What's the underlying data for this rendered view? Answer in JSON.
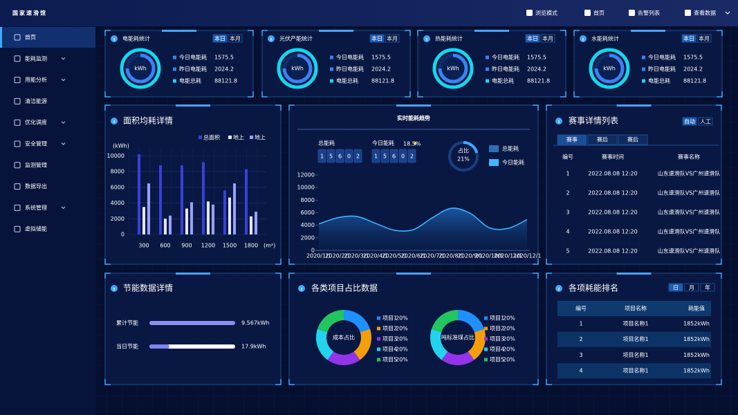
{
  "header": {
    "title": "国家速滑馆",
    "nav": [
      "浏览模式",
      "首页",
      "告警列表",
      "查看数据"
    ]
  },
  "sidebar": {
    "items": [
      {
        "label": "首页",
        "expandable": false,
        "active": true
      },
      {
        "label": "能耗监测",
        "expandable": true,
        "active": false
      },
      {
        "label": "用能分析",
        "expandable": true,
        "active": false
      },
      {
        "label": "清洁能源",
        "expandable": false,
        "active": false
      },
      {
        "label": "优化调度",
        "expandable": true,
        "active": false
      },
      {
        "label": "安全管理",
        "expandable": true,
        "active": false
      },
      {
        "label": "监测管理",
        "expandable": false,
        "active": false
      },
      {
        "label": "数据导出",
        "expandable": false,
        "active": false
      },
      {
        "label": "系统管理",
        "expandable": true,
        "active": false
      },
      {
        "label": "虚拟储能",
        "expandable": false,
        "active": false
      }
    ]
  },
  "stat_cards": [
    {
      "title": "电能耗统计",
      "tabs": [
        "本日",
        "本月"
      ],
      "gauge_unit": "kWh",
      "rows": [
        {
          "label": "今日电能耗",
          "value": 1575.5
        },
        {
          "label": "昨日电能耗",
          "value": 2024.2
        },
        {
          "label": "电能总耗",
          "value": 88121.8
        }
      ]
    },
    {
      "title": "光伏产能统计",
      "tabs": [
        "本日",
        "本月"
      ],
      "gauge_unit": "kWh",
      "rows": [
        {
          "label": "今日电能耗",
          "value": 1575.5
        },
        {
          "label": "昨日电能耗",
          "value": 2024.2
        },
        {
          "label": "电能总耗",
          "value": 88121.8
        }
      ]
    },
    {
      "title": "热能耗统计",
      "tabs": [
        "本日",
        "本月"
      ],
      "gauge_unit": "kWh",
      "rows": [
        {
          "label": "今日电能耗",
          "value": 1575.5
        },
        {
          "label": "昨日电能耗",
          "value": 2024.2
        },
        {
          "label": "电能总耗",
          "value": 88121.8
        }
      ]
    },
    {
      "title": "水能耗统计",
      "tabs": [
        "本日",
        "本月"
      ],
      "gauge_unit": "kWh",
      "rows": [
        {
          "label": "今日电能耗",
          "value": 1575.5
        },
        {
          "label": "昨日电能耗",
          "value": 2024.2
        },
        {
          "label": "电能总耗",
          "value": 88121.8
        }
      ]
    }
  ],
  "chart_data": [
    {
      "type": "bar",
      "title": "面积均耗详情",
      "y_label": "(kWh)",
      "x_unit": "(m²)",
      "categories": [
        300,
        600,
        900,
        1200,
        1500,
        1800
      ],
      "series": [
        {
          "name": "总面积",
          "color": "#3a3fd8",
          "values": [
            10200,
            8800,
            8800,
            9200,
            5600,
            8300
          ]
        },
        {
          "name": "地上",
          "color": "#e3e8ff",
          "values": [
            3500,
            2000,
            3300,
            4200,
            4700,
            2300
          ]
        },
        {
          "name": "地上",
          "color": "#9aa0ff",
          "values": [
            6500,
            2400,
            4100,
            3800,
            6500,
            2900
          ]
        }
      ],
      "ylim": [
        0,
        11000
      ],
      "yticks": [
        0,
        2000,
        4000,
        6000,
        8000,
        10000
      ],
      "grid": true
    },
    {
      "type": "line",
      "title": "实时能耗趋势",
      "counters": [
        {
          "label": "总能耗",
          "value": 15602
        },
        {
          "label": "今日能耗",
          "value": 15602,
          "change": "18.5%"
        }
      ],
      "share": {
        "label": "占比",
        "value": 21,
        "value_label": "21%"
      },
      "legend": [
        {
          "name": "总能耗",
          "color": "#2c6fb5"
        },
        {
          "name": "今日能耗",
          "color": "#3fb5ff"
        }
      ],
      "categories": [
        "2020/1/1",
        "2020/2/1",
        "2020/3/1",
        "2020/4/1",
        "2020/5/1",
        "2020/6/1",
        "2020/7/1",
        "2020/8/1",
        "2020/9/1",
        "2020/10/1",
        "2020/11/1",
        "2020/12/1"
      ],
      "series": [
        {
          "color": "#38b6ff",
          "fill": "#1d4f9a",
          "values": [
            4200,
            5200,
            5400,
            4300,
            3200,
            3300,
            5200,
            6700,
            5900,
            3600,
            3500,
            4900
          ]
        }
      ],
      "ylim": [
        0,
        12000
      ],
      "yticks": [
        0,
        2000,
        4000,
        6000,
        8000,
        10000,
        12000
      ]
    },
    {
      "type": "pie",
      "title": "成本占比",
      "categories": [
        "项目1",
        "项目2",
        "项目3",
        "项目4",
        "项目5"
      ],
      "values": [
        20,
        20,
        20,
        20,
        20
      ],
      "value_labels": [
        "20%",
        "20%",
        "20%",
        "20%",
        "20%"
      ],
      "colors": [
        "#1e90ff",
        "#f59e0b",
        "#9333ea",
        "#22d3ee",
        "#22c55e"
      ]
    },
    {
      "type": "pie",
      "title": "吨标准煤占比",
      "categories": [
        "项目1",
        "项目2",
        "项目3",
        "项目4",
        "项目5"
      ],
      "values": [
        20,
        20,
        20,
        20,
        20
      ],
      "value_labels": [
        "20%",
        "20%",
        "20%",
        "20%",
        "20%"
      ],
      "colors": [
        "#1e90ff",
        "#f59e0b",
        "#9333ea",
        "#22d3ee",
        "#22c55e"
      ]
    }
  ],
  "project_share": {
    "title": "各类项目占比数据"
  },
  "events": {
    "title": "赛事详情列表",
    "modes": [
      "自动",
      "人工"
    ],
    "tabs": [
      "赛事",
      "赛后",
      "赛后"
    ],
    "columns": [
      "编号",
      "赛事时间",
      "赛事名称"
    ],
    "rows": [
      [
        1,
        "2022.08.08  12:20",
        "山东速滑队VS广州速滑队"
      ],
      [
        2,
        "2022.08.08  12:20",
        "山东速滑队VS广州速滑队"
      ],
      [
        3,
        "2022.08.08  12:20",
        "山东速滑队VS广州速滑队"
      ],
      [
        4,
        "2022.08.08  12:20",
        "山东速滑队VS广州速滑队"
      ],
      [
        5,
        "2022.08.08  12:20",
        "山东速滑队VS广州速滑队"
      ]
    ]
  },
  "savings": {
    "title": "节能数据详情",
    "rows": [
      {
        "label": "累计节能",
        "value": "9.567kWh"
      },
      {
        "label": "当日节能",
        "value": "17.9kWh"
      }
    ]
  },
  "ranking": {
    "title": "各项耗能排名",
    "periods": [
      "日",
      "月",
      "年"
    ],
    "columns": [
      "编号",
      "项目名称",
      "耗能值"
    ],
    "rows": [
      [
        1,
        "项目名称1",
        "1852kWh"
      ],
      [
        2,
        "项目名称1",
        "1852kWh"
      ],
      [
        3,
        "项目名称1",
        "1852kWh"
      ],
      [
        4,
        "项目名称1",
        "1852kWh"
      ]
    ]
  }
}
